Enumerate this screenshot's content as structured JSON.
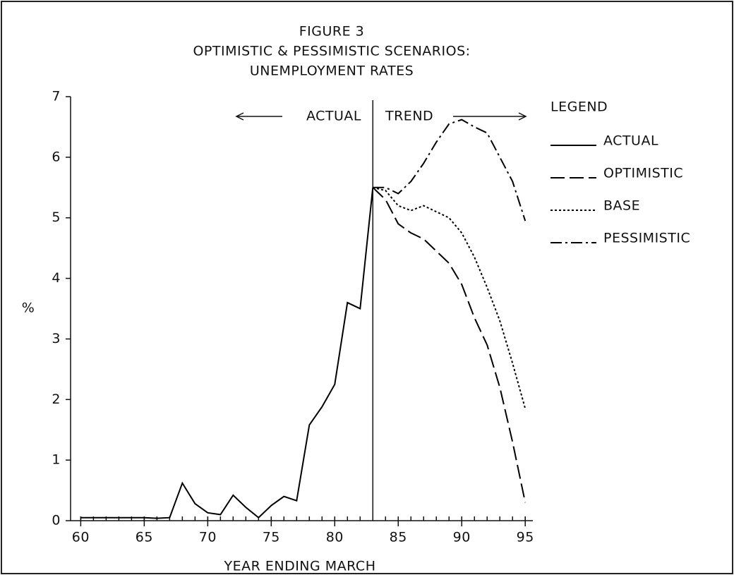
{
  "chart_data": {
    "type": "line",
    "title": [
      "FIGURE 3",
      "OPTIMISTIC & PESSIMISTIC SCENARIOS:",
      "UNEMPLOYMENT RATES"
    ],
    "xlabel": "YEAR ENDING MARCH",
    "ylabel": "%",
    "legend_title": "LEGEND",
    "legend": "right",
    "annotations": [
      "ACTUAL",
      "TREND"
    ],
    "divider_x": 83,
    "x": [
      60,
      61,
      62,
      63,
      64,
      65,
      66,
      67,
      68,
      69,
      70,
      71,
      72,
      73,
      74,
      75,
      76,
      77,
      78,
      79,
      80,
      81,
      82,
      83,
      84,
      85,
      86,
      87,
      88,
      89,
      90,
      91,
      92,
      93,
      94,
      95
    ],
    "series": [
      {
        "name": "ACTUAL",
        "color": "#000000",
        "style": "solid",
        "values": [
          0.05,
          0.05,
          0.05,
          0.05,
          0.05,
          0.05,
          0.04,
          0.05,
          0.62,
          0.28,
          0.13,
          0.1,
          0.42,
          0.22,
          0.05,
          0.25,
          0.4,
          0.33,
          1.58,
          1.88,
          2.25,
          3.6,
          3.5,
          5.5,
          null,
          null,
          null,
          null,
          null,
          null,
          null,
          null,
          null,
          null,
          null,
          null
        ]
      },
      {
        "name": "OPTIMISTIC",
        "color": "#000000",
        "style": "dashed",
        "values": [
          null,
          null,
          null,
          null,
          null,
          null,
          null,
          null,
          null,
          null,
          null,
          null,
          null,
          null,
          null,
          null,
          null,
          null,
          null,
          null,
          null,
          null,
          null,
          5.5,
          5.3,
          4.9,
          4.75,
          4.65,
          4.45,
          4.25,
          3.9,
          3.35,
          2.9,
          2.2,
          1.3,
          0.3
        ]
      },
      {
        "name": "BASE",
        "color": "#000000",
        "style": "dotted",
        "values": [
          null,
          null,
          null,
          null,
          null,
          null,
          null,
          null,
          null,
          null,
          null,
          null,
          null,
          null,
          null,
          null,
          null,
          null,
          null,
          null,
          null,
          null,
          null,
          5.5,
          5.45,
          5.2,
          5.12,
          5.2,
          5.1,
          5.0,
          4.75,
          4.35,
          3.85,
          3.3,
          2.6,
          1.85
        ]
      },
      {
        "name": "PESSIMISTIC",
        "color": "#000000",
        "style": "dashdot",
        "values": [
          null,
          null,
          null,
          null,
          null,
          null,
          null,
          null,
          null,
          null,
          null,
          null,
          null,
          null,
          null,
          null,
          null,
          null,
          null,
          null,
          null,
          null,
          null,
          5.5,
          5.5,
          5.4,
          5.6,
          5.9,
          6.25,
          6.55,
          6.62,
          6.5,
          6.4,
          6.0,
          5.6,
          4.95
        ]
      }
    ],
    "xlim": [
      59.2,
      95.6
    ],
    "xticks": [
      60,
      65,
      70,
      75,
      80,
      85,
      90,
      95
    ],
    "xminorticks": [
      60,
      61,
      62,
      63,
      64,
      65,
      66,
      67,
      68,
      69,
      70,
      71,
      72,
      73,
      74,
      75,
      76,
      77,
      78,
      79,
      80,
      81,
      82,
      83,
      84,
      85,
      86,
      87,
      88,
      89,
      90,
      91,
      92,
      93,
      94,
      95
    ],
    "ylim": [
      0,
      7
    ],
    "yticks": [
      0,
      1,
      2,
      3,
      4,
      5,
      6,
      7
    ],
    "grid": false
  }
}
